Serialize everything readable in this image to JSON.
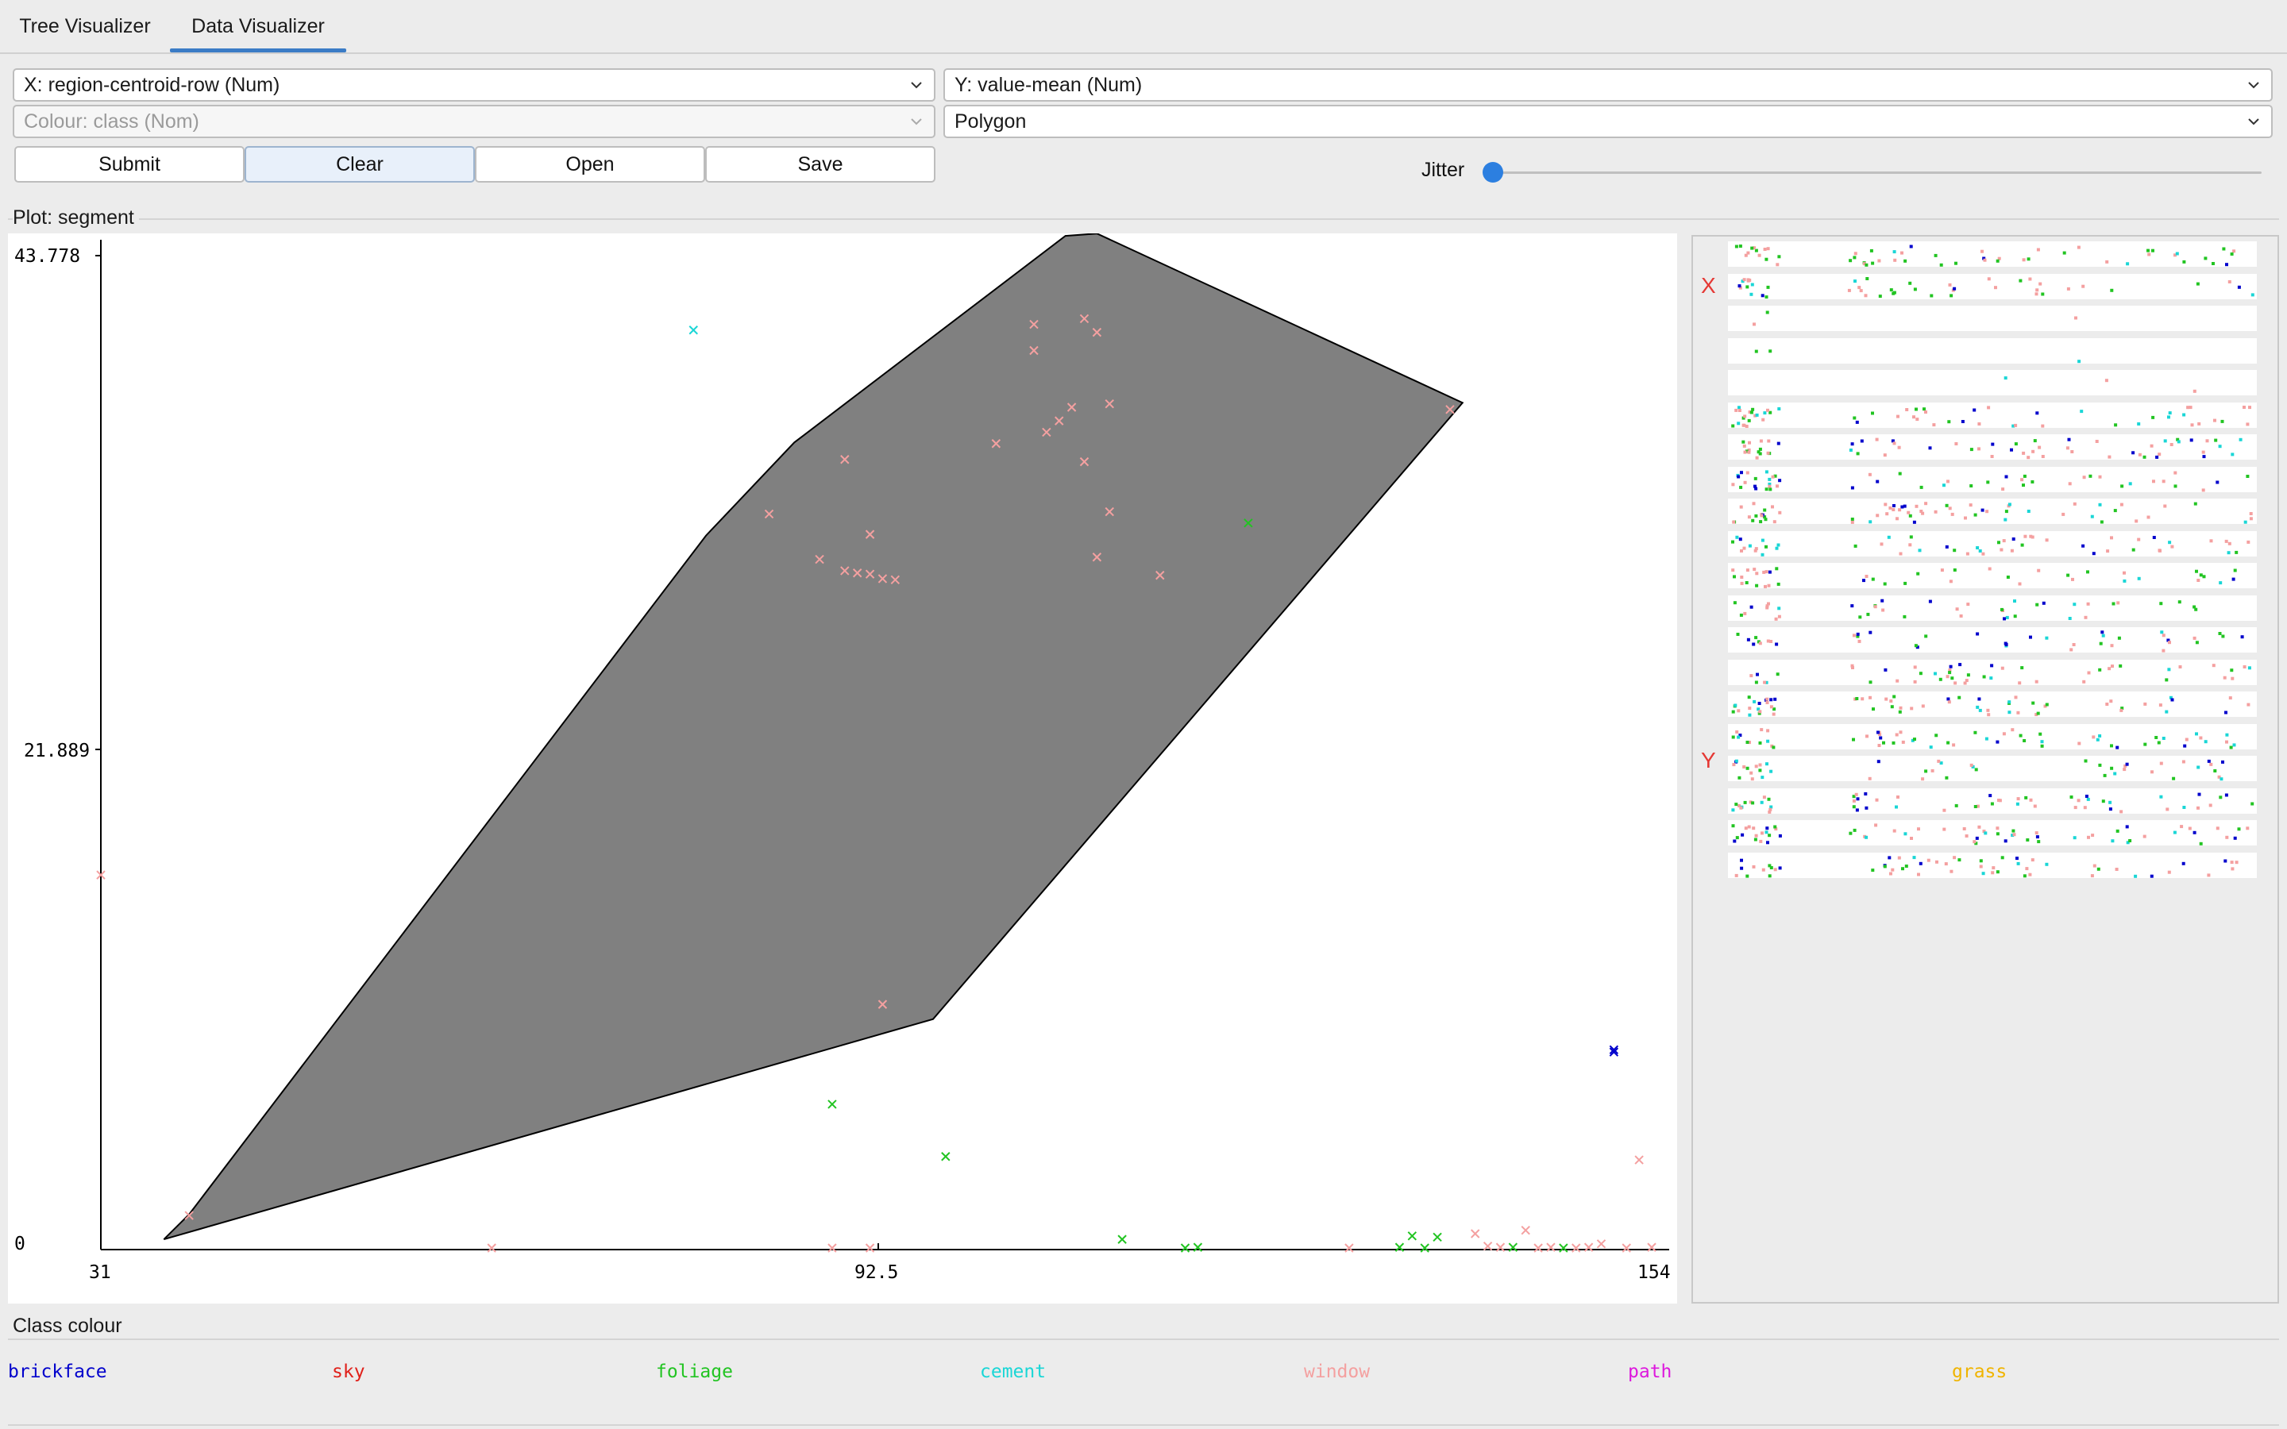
{
  "tabs": [
    {
      "label": "Tree Visualizer",
      "active": false
    },
    {
      "label": "Data Visualizer",
      "active": true
    }
  ],
  "controls": {
    "x_select": "X: region-centroid-row (Num)",
    "y_select": "Y: value-mean (Num)",
    "colour_select": "Colour: class (Nom)",
    "shape_select": "Polygon",
    "buttons": {
      "submit": "Submit",
      "clear": "Clear",
      "open": "Open",
      "save": "Save"
    },
    "jitter_label": "Jitter",
    "jitter_value": 0
  },
  "plot": {
    "title": "Plot: segment",
    "polygon_fill": "#808080",
    "chart_data": {
      "type": "scatter",
      "x_tick_labels": [
        "31",
        "92.5",
        "154"
      ],
      "y_tick_labels": [
        "43.778",
        "21.889",
        "0"
      ],
      "xlim": [
        31,
        154
      ],
      "ylim": [
        0,
        43.778
      ],
      "polygon": [
        [
          38,
          1.55
        ],
        [
          36,
          0.45
        ],
        [
          97,
          10.15
        ],
        [
          139,
          37.3
        ],
        [
          110,
          44.75
        ],
        [
          107.5,
          44.65
        ],
        [
          86,
          35.55
        ],
        [
          79,
          31.45
        ]
      ],
      "points": [
        {
          "x": 38,
          "y": 1.5,
          "cls": "window"
        },
        {
          "x": 78,
          "y": 40.5,
          "cls": "cement"
        },
        {
          "x": 105,
          "y": 40.75,
          "cls": "window"
        },
        {
          "x": 109,
          "y": 41.0,
          "cls": "window"
        },
        {
          "x": 110,
          "y": 40.4,
          "cls": "window"
        },
        {
          "x": 105,
          "y": 39.6,
          "cls": "window"
        },
        {
          "x": 111,
          "y": 37.25,
          "cls": "window"
        },
        {
          "x": 108,
          "y": 37.1,
          "cls": "window"
        },
        {
          "x": 107,
          "y": 36.5,
          "cls": "window"
        },
        {
          "x": 106,
          "y": 36.0,
          "cls": "window"
        },
        {
          "x": 102,
          "y": 35.5,
          "cls": "window"
        },
        {
          "x": 90,
          "y": 34.8,
          "cls": "window"
        },
        {
          "x": 109,
          "y": 34.7,
          "cls": "window"
        },
        {
          "x": 138,
          "y": 37.0,
          "cls": "window"
        },
        {
          "x": 84,
          "y": 32.4,
          "cls": "window"
        },
        {
          "x": 111,
          "y": 32.5,
          "cls": "window"
        },
        {
          "x": 122,
          "y": 32.0,
          "cls": "foliage"
        },
        {
          "x": 92,
          "y": 31.5,
          "cls": "window"
        },
        {
          "x": 88,
          "y": 30.4,
          "cls": "window"
        },
        {
          "x": 90,
          "y": 29.9,
          "cls": "window"
        },
        {
          "x": 91,
          "y": 29.8,
          "cls": "window"
        },
        {
          "x": 92,
          "y": 29.75,
          "cls": "window"
        },
        {
          "x": 93,
          "y": 29.55,
          "cls": "window"
        },
        {
          "x": 110,
          "y": 30.5,
          "cls": "window"
        },
        {
          "x": 115,
          "y": 29.7,
          "cls": "window"
        },
        {
          "x": 94,
          "y": 29.5,
          "cls": "window"
        },
        {
          "x": 93,
          "y": 10.8,
          "cls": "window"
        },
        {
          "x": 89,
          "y": 6.4,
          "cls": "foliage"
        },
        {
          "x": 98,
          "y": 4.1,
          "cls": "foliage"
        },
        {
          "x": 112,
          "y": 0.45,
          "cls": "foliage"
        },
        {
          "x": 117,
          "y": 0.05,
          "cls": "foliage"
        },
        {
          "x": 135,
          "y": 0.6,
          "cls": "foliage"
        },
        {
          "x": 137,
          "y": 0.55,
          "cls": "foliage"
        },
        {
          "x": 140,
          "y": 0.7,
          "cls": "window"
        },
        {
          "x": 142,
          "y": 0.1,
          "cls": "window"
        },
        {
          "x": 144,
          "y": 0.85,
          "cls": "window"
        },
        {
          "x": 147,
          "y": 0.05,
          "cls": "foliage"
        },
        {
          "x": 150,
          "y": 0.25,
          "cls": "window"
        },
        {
          "x": 151,
          "y": 8.8,
          "cls": "brickface"
        },
        {
          "x": 151,
          "y": 8.7,
          "cls": "brickface"
        },
        {
          "x": 153,
          "y": 3.95,
          "cls": "window"
        },
        {
          "x": 31,
          "y": 16.5,
          "cls": "window"
        },
        {
          "x": 62,
          "y": 0.05,
          "cls": "window"
        },
        {
          "x": 89,
          "y": 0.05,
          "cls": "window"
        },
        {
          "x": 92,
          "y": 0.05,
          "cls": "window"
        },
        {
          "x": 118,
          "y": 0.1,
          "cls": "foliage"
        },
        {
          "x": 130,
          "y": 0.05,
          "cls": "window"
        },
        {
          "x": 134,
          "y": 0.1,
          "cls": "foliage"
        },
        {
          "x": 136,
          "y": 0.05,
          "cls": "foliage"
        },
        {
          "x": 141,
          "y": 0.15,
          "cls": "window"
        },
        {
          "x": 143,
          "y": 0.1,
          "cls": "foliage"
        },
        {
          "x": 145,
          "y": 0.05,
          "cls": "window"
        },
        {
          "x": 146,
          "y": 0.1,
          "cls": "window"
        },
        {
          "x": 148,
          "y": 0.05,
          "cls": "window"
        },
        {
          "x": 149,
          "y": 0.1,
          "cls": "window"
        },
        {
          "x": 152,
          "y": 0.05,
          "cls": "window"
        },
        {
          "x": 154,
          "y": 0.1,
          "cls": "window"
        }
      ]
    }
  },
  "matrix": {
    "x_label": "X",
    "y_label": "Y",
    "strip_count": 20
  },
  "legend": {
    "title": "Class colour",
    "items": [
      {
        "label": "brickface",
        "color": "#0000cc"
      },
      {
        "label": "sky",
        "color": "#e0201a"
      },
      {
        "label": "foliage",
        "color": "#22c422"
      },
      {
        "label": "cement",
        "color": "#1ad6d6"
      },
      {
        "label": "window",
        "color": "#f4a0a0"
      },
      {
        "label": "path",
        "color": "#dd18dd"
      },
      {
        "label": "grass",
        "color": "#f0b400"
      }
    ]
  }
}
